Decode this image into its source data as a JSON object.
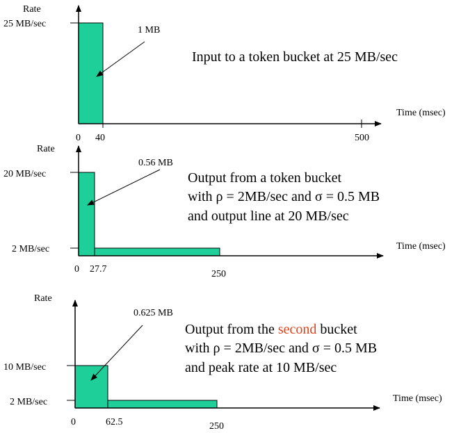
{
  "colors": {
    "bar_fill": "#1fcf9a",
    "accent": "#e2421a"
  },
  "charts": [
    {
      "ylabel": "Rate",
      "xlabel": "Time (msec)",
      "y_ticks": [
        "25 MB/sec"
      ],
      "x_ticks": [
        "0",
        "40",
        "500"
      ],
      "bar_label": "1 MB",
      "caption": [
        "Input to a token bucket at 25 MB/sec"
      ]
    },
    {
      "ylabel": "Rate",
      "xlabel": "Time (msec)",
      "y_ticks": [
        "20 MB/sec",
        "2 MB/sec"
      ],
      "x_ticks": [
        "0",
        "27.7",
        "250"
      ],
      "bar_label": "0.56 MB",
      "caption": [
        "Output from a token bucket",
        "with ρ = 2MB/sec and σ = 0.5 MB",
        "and output line at 20 MB/sec"
      ]
    },
    {
      "ylabel": "Rate",
      "xlabel": "Time (msec)",
      "y_ticks": [
        "10 MB/sec",
        "2 MB/sec"
      ],
      "x_ticks": [
        "0",
        "62.5",
        "250"
      ],
      "bar_label": "0.625 MB",
      "caption_pre": "Output from the ",
      "caption_accent": "second",
      "caption_post": " bucket",
      "caption": [
        "with ρ = 2MB/sec and σ = 0.5 MB",
        "and peak rate at 10 MB/sec"
      ]
    }
  ]
}
